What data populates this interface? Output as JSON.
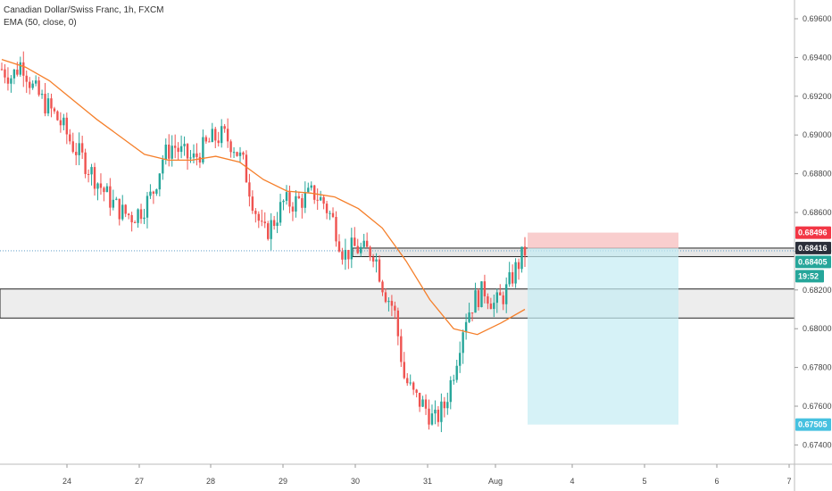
{
  "legend": {
    "title": "Canadian Dollar/Swiss Franc, 1h, FXCM",
    "indicator": "EMA (50, close, 0)"
  },
  "colors": {
    "up": "#26a69a",
    "down": "#ef5350",
    "ema": "#f57f2a",
    "stop_zone": "#f8c6c6",
    "target_zone": "#c4ecf4",
    "zone_fill": "#e6e6e6",
    "badge_red": "#f23645",
    "badge_dark": "#2a2e39",
    "badge_teal": "#26a69a",
    "badge_cyan": "#46c1e0"
  },
  "price_badges": [
    {
      "label": "0.68496",
      "color": "badge_red"
    },
    {
      "label": "0.68416",
      "color": "badge_dark"
    },
    {
      "label": "0.68405",
      "color": "badge_teal"
    },
    {
      "label": "19:52",
      "color": "badge_teal"
    },
    {
      "label": "0.67505",
      "color": "badge_cyan"
    }
  ],
  "chart_data": {
    "type": "candlestick",
    "y_axis": {
      "range": [
        0.6732,
        0.697
      ],
      "ticks": [
        "0.69600",
        "0.69400",
        "0.69200",
        "0.69000",
        "0.68800",
        "0.68600",
        "0.68400",
        "0.68200",
        "0.68000",
        "0.67800",
        "0.67600",
        "0.67400"
      ],
      "tick_values": [
        0.696,
        0.694,
        0.692,
        0.69,
        0.688,
        0.686,
        0.684,
        0.682,
        0.68,
        0.678,
        0.676,
        0.674
      ]
    },
    "x_axis": {
      "ticks": [
        "24",
        "27",
        "28",
        "29",
        "30",
        "31",
        "Aug",
        "4",
        "5",
        "6",
        "7"
      ]
    },
    "series_close_path": [
      0.6934,
      0.693,
      0.6938,
      0.6925,
      0.6918,
      0.6912,
      0.6905,
      0.6895,
      0.6888,
      0.688,
      0.6872,
      0.6865,
      0.686,
      0.6858,
      0.6862,
      0.687,
      0.6888,
      0.6895,
      0.689,
      0.6887,
      0.6893,
      0.6898,
      0.69,
      0.6895,
      0.6885,
      0.6865,
      0.6848,
      0.6855,
      0.6865,
      0.6865,
      0.6867,
      0.687,
      0.6865,
      0.6855,
      0.6838,
      0.6842,
      0.684,
      0.684,
      0.682,
      0.681,
      0.6775,
      0.6765,
      0.676,
      0.6752,
      0.676,
      0.678,
      0.6805,
      0.6815,
      0.682,
      0.6812,
      0.6818,
      0.683,
      0.684
    ],
    "ema_path": [
      0.6939,
      0.6935,
      0.6928,
      0.6918,
      0.6908,
      0.6899,
      0.689,
      0.6887,
      0.6887,
      0.6889,
      0.6886,
      0.6877,
      0.6871,
      0.687,
      0.6868,
      0.6862,
      0.6852,
      0.6835,
      0.6815,
      0.68,
      0.6797,
      0.6803,
      0.681
    ],
    "trade": {
      "entry": 0.68416,
      "stop": 0.68496,
      "target": 0.67505
    },
    "zones": [
      {
        "from": 0.68372,
        "to": 0.68416
      },
      {
        "from": 0.68055,
        "to": 0.68205
      }
    ]
  }
}
